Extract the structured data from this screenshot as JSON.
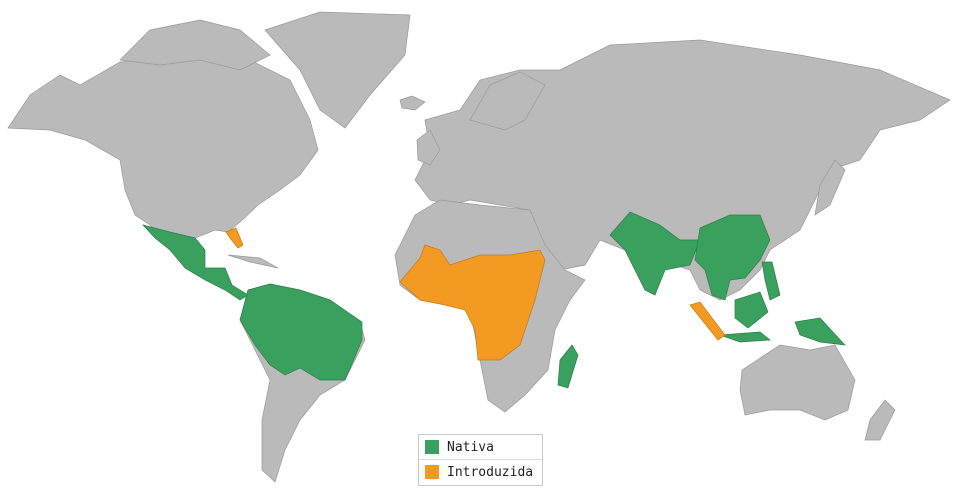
{
  "legend": {
    "items": [
      {
        "label": "Nativa",
        "color": "#3aa05e"
      },
      {
        "label": "Introduzida",
        "color": "#f39a22"
      }
    ]
  },
  "colors": {
    "land": "#bababa",
    "native": "#3aa05e",
    "introduced": "#f39a22"
  }
}
